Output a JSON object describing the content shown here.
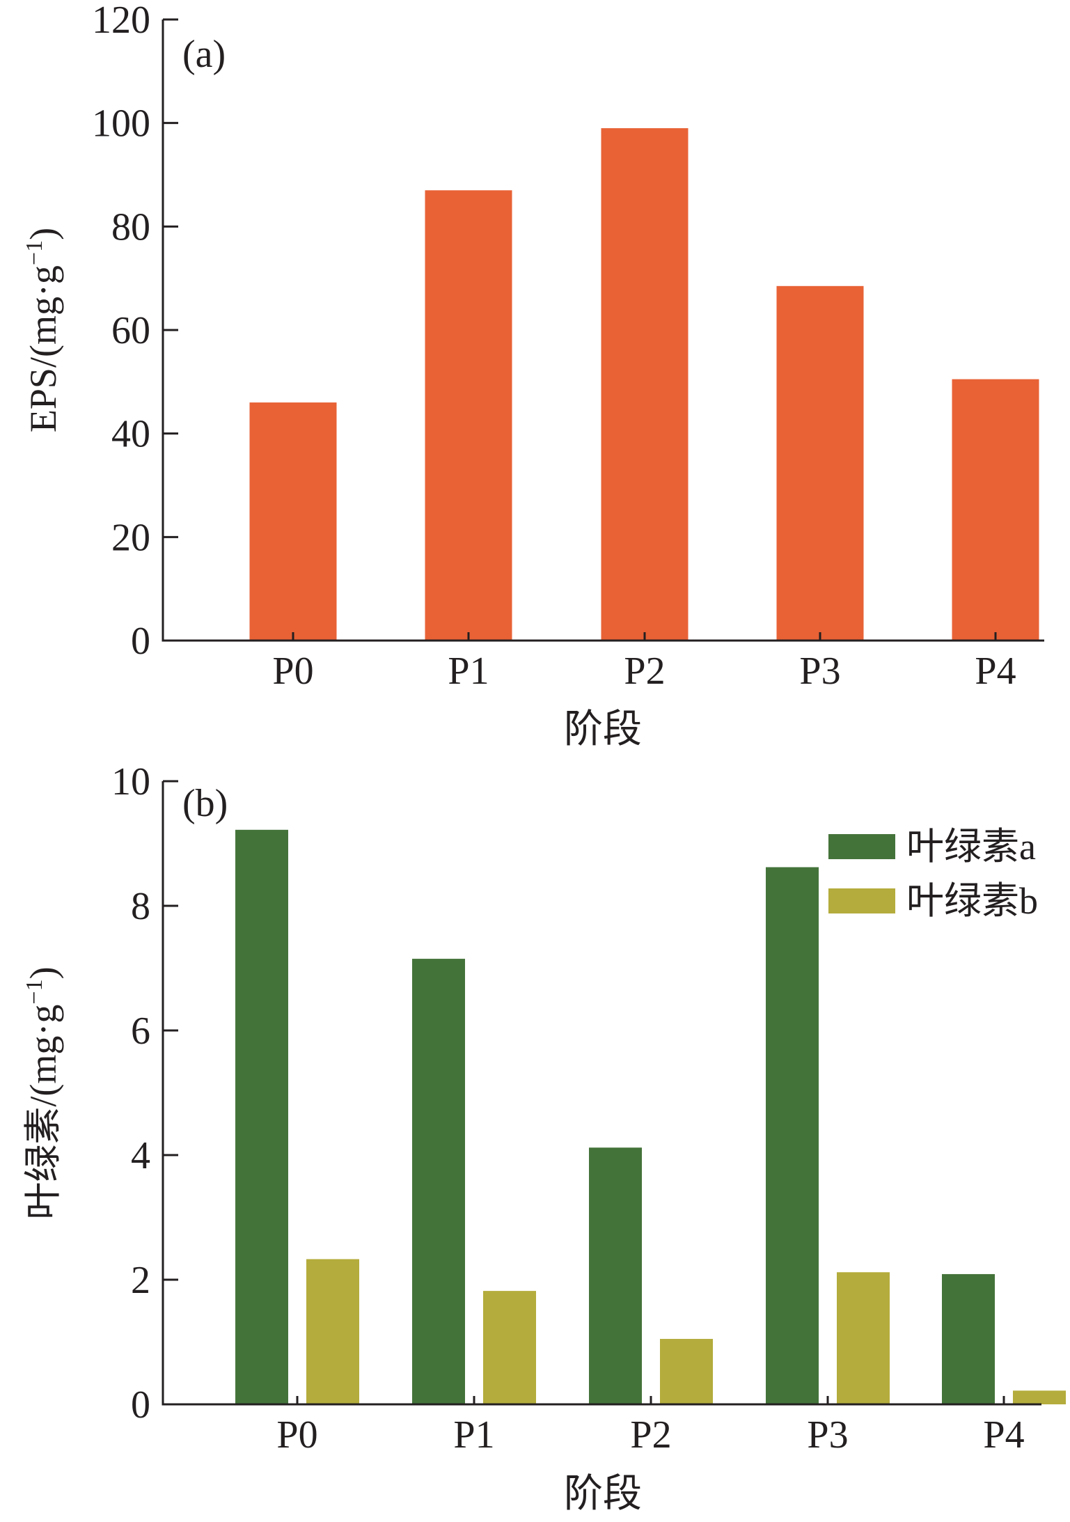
{
  "chart_data": [
    {
      "type": "bar",
      "panel_label": "(a)",
      "categories": [
        "P0",
        "P1",
        "P2",
        "P3",
        "P4"
      ],
      "values": [
        46,
        87,
        99,
        68.5,
        50.5
      ],
      "xlabel": "阶段",
      "ylabel": "EPS/(mg·g",
      "ylabel_sup": "−1",
      "ylabel_end": ")",
      "ylim": [
        0,
        120
      ],
      "yticks": [
        "0",
        "20",
        "40",
        "60",
        "80",
        "100",
        "120"
      ],
      "grid": false,
      "colors": {
        "bar": "#e86236"
      }
    },
    {
      "type": "bar",
      "panel_label": "(b)",
      "categories": [
        "P0",
        "P1",
        "P2",
        "P3",
        "P4"
      ],
      "series": [
        {
          "name": "叶绿素a",
          "values": [
            9.22,
            7.15,
            4.12,
            8.62,
            2.09
          ],
          "color": "#44733a"
        },
        {
          "name": "叶绿素b",
          "values": [
            2.33,
            1.82,
            1.05,
            2.12,
            0.22
          ],
          "color": "#b4ac3c"
        }
      ],
      "xlabel": "阶段",
      "ylabel": "叶绿素/(mg·g",
      "ylabel_sup": "−1",
      "ylabel_end": ")",
      "ylim": [
        0,
        10
      ],
      "yticks": [
        "0",
        "2",
        "4",
        "6",
        "8",
        "10"
      ],
      "grid": false,
      "legend_position": "top-right"
    }
  ]
}
